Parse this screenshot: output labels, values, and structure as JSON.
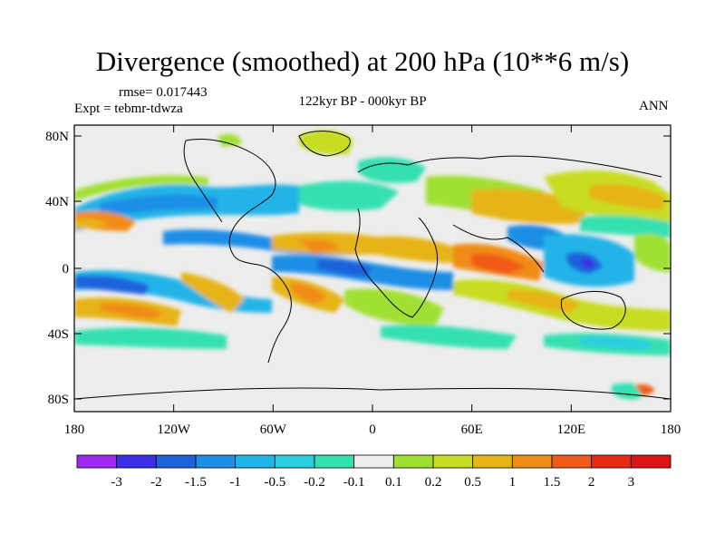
{
  "title": "Divergence (smoothed) at 200 hPa (10**6 m/s)",
  "rmse_label": "rmse= 0.017443",
  "expt_label": "Expt = tebmr-tdwza",
  "period_label": "122kyr BP - 000kyr BP",
  "season_label": "ANN",
  "map": {
    "lat_ticks": [
      "80N",
      "40N",
      "0",
      "40S",
      "80S"
    ],
    "lon_ticks": [
      "180",
      "120W",
      "60W",
      "0",
      "60E",
      "120E",
      "180"
    ]
  },
  "colorbar": {
    "labels": [
      "-3",
      "-2",
      "-1.5",
      "-1",
      "-0.5",
      "-0.2",
      "-0.1",
      "0.1",
      "0.2",
      "0.5",
      "1",
      "1.5",
      "2",
      "3"
    ],
    "colors": [
      "#9f28f0",
      "#3b2ee6",
      "#1f62dc",
      "#1e8ee6",
      "#20b4e8",
      "#2acfe0",
      "#34e0b0",
      "#ededed",
      "#a0e030",
      "#c8dc24",
      "#e6b414",
      "#f08c18",
      "#f05a18",
      "#e82a14",
      "#dc1414"
    ]
  },
  "colors": {
    "land_bg": "#ededed",
    "coast": "#000000"
  }
}
